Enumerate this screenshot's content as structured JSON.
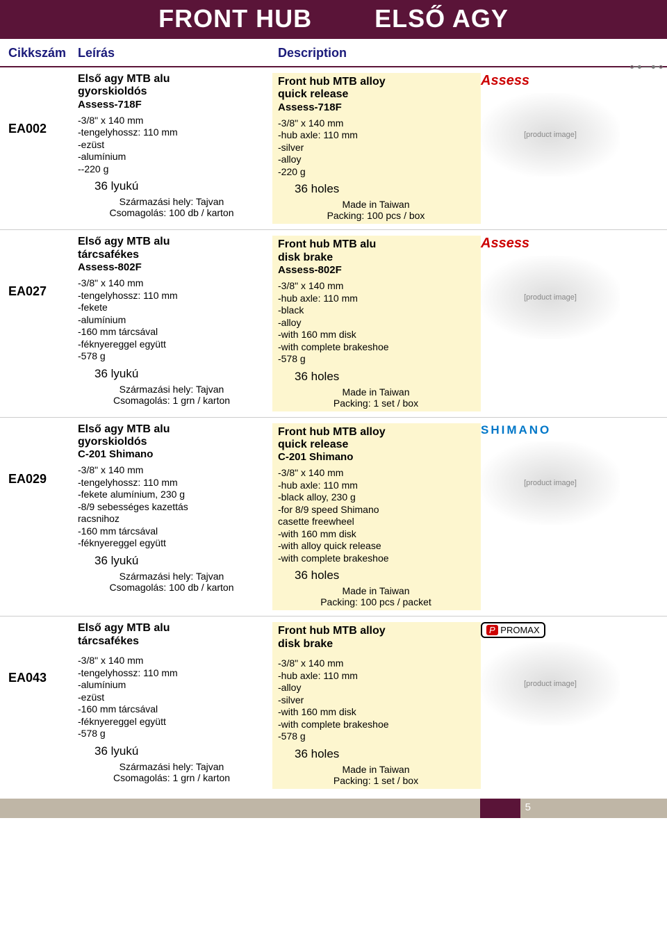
{
  "page": {
    "title_en": "FRONT HUB",
    "title_hu": "ELSŐ AGY",
    "col_sku": "Cikkszám",
    "col_hu": "Leírás",
    "col_en": "Description",
    "page_number": "5",
    "colors": {
      "brand_bg": "#5a1438",
      "highlight_bg": "#fdf6cf",
      "header_text": "#1a1a7a"
    }
  },
  "products": [
    {
      "sku": "EA002",
      "brand": "assess",
      "hu": {
        "title1": "Első agy MTB alu",
        "title2": "gyorskioldós",
        "model": "Assess-718F",
        "specs": [
          "-3/8\" x 140 mm",
          "-tengelyhossz: 110 mm",
          "-ezüst",
          "-alumínium",
          "--220 g"
        ],
        "holes": "36 lyukú",
        "origin1": "Származási hely: Tajvan",
        "origin2": "Csomagolás: 100 db / karton"
      },
      "en": {
        "title1": "Front hub MTB alloy",
        "title2": "quick release",
        "model": "Assess-718F",
        "specs": [
          "-3/8\" x 140 mm",
          "-hub axle: 110 mm",
          "-silver",
          "-alloy",
          "-220 g"
        ],
        "holes": "36 holes",
        "origin1": "Made in Taiwan",
        "origin2": "Packing: 100 pcs / box"
      }
    },
    {
      "sku": "EA027",
      "brand": "assess",
      "hu": {
        "title1": "Első agy MTB alu",
        "title2": "tárcsafékes",
        "model": "Assess-802F",
        "specs": [
          "-3/8\" x 140 mm",
          "-tengelyhossz: 110 mm",
          "-fekete",
          "-alumínium",
          "-160 mm tárcsával",
          "-féknyereggel együtt",
          "-578 g"
        ],
        "holes": "36 lyukú",
        "origin1": "Származási hely: Tajvan",
        "origin2": "Csomagolás: 1 grn / karton"
      },
      "en": {
        "title1": "Front hub MTB alu",
        "title2": "disk brake",
        "model": "Assess-802F",
        "specs": [
          "-3/8\" x 140 mm",
          "-hub axle: 110 mm",
          "-black",
          "-alloy",
          "-with 160 mm disk",
          "-with complete brakeshoe",
          "-578 g"
        ],
        "holes": "36 holes",
        "origin1": "Made in Taiwan",
        "origin2": "Packing: 1 set / box"
      }
    },
    {
      "sku": "EA029",
      "brand": "shimano",
      "hu": {
        "title1": "Első agy MTB alu",
        "title2": "gyorskioldós",
        "model": "C-201 Shimano",
        "specs": [
          "-3/8\" x 140 mm",
          "-tengelyhossz: 110 mm",
          "-fekete alumínium, 230 g",
          "-8/9 sebességes kazettás",
          " racsnihoz",
          "-160 mm tárcsával",
          "-féknyereggel együtt"
        ],
        "holes": "36 lyukú",
        "origin1": "Származási hely: Tajvan",
        "origin2": "Csomagolás: 100 db / karton"
      },
      "en": {
        "title1": "Front hub MTB alloy",
        "title2": "quick release",
        "model": "C-201 Shimano",
        "specs": [
          "-3/8\" x 140 mm",
          "-hub axle: 110 mm",
          "-black alloy, 230 g",
          "-for 8/9 speed Shimano",
          " casette freewheel",
          "-with 160 mm disk",
          "-with alloy quick release",
          "-with complete brakeshoe"
        ],
        "holes": "36 holes",
        "origin1": "Made in Taiwan",
        "origin2": "Packing: 100 pcs / packet"
      }
    },
    {
      "sku": "EA043",
      "brand": "promax",
      "hu": {
        "title1": "Első agy MTB alu",
        "title2": "tárcsafékes",
        "model": "",
        "specs": [
          "-3/8\" x 140 mm",
          "-tengelyhossz: 110 mm",
          "-alumínium",
          "-ezüst",
          "-160 mm tárcsával",
          "-féknyereggel együtt",
          "-578 g"
        ],
        "holes": "36 lyukú",
        "origin1": "Származási hely: Tajvan",
        "origin2": "Csomagolás: 1 grn / karton"
      },
      "en": {
        "title1": "Front hub MTB alloy",
        "title2": "disk brake",
        "model": "",
        "specs": [
          "-3/8\" x 140 mm",
          "-hub axle: 110 mm",
          "-alloy",
          "-silver",
          "-with 160 mm disk",
          "-with complete brakeshoe",
          "-578 g"
        ],
        "holes": "36 holes",
        "origin1": "Made in Taiwan",
        "origin2": "Packing: 1 set / box"
      }
    }
  ]
}
